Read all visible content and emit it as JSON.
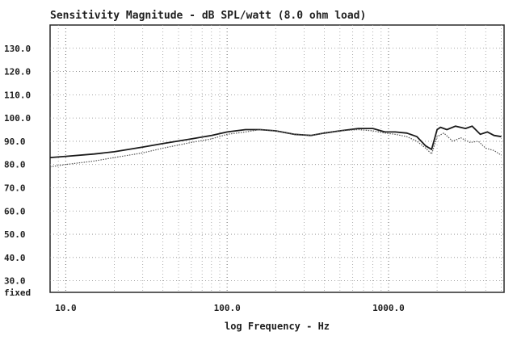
{
  "chart_data": {
    "type": "line",
    "title": "Sensitivity Magnitude - dB SPL/watt (8.0 ohm load)",
    "xlabel": "log Frequency - Hz",
    "ylabel": "",
    "x_scale": "log",
    "xlim": [
      8,
      5200
    ],
    "ylim": [
      25,
      140
    ],
    "x_ticks": [
      {
        "value": 10,
        "label": "10.0"
      },
      {
        "value": 100,
        "label": "100.0"
      },
      {
        "value": 1000,
        "label": "1000.0"
      }
    ],
    "y_ticks": [
      {
        "value": 130,
        "label": "130.0"
      },
      {
        "value": 120,
        "label": "120.0"
      },
      {
        "value": 110,
        "label": "110.0"
      },
      {
        "value": 100,
        "label": "100.0"
      },
      {
        "value": 90,
        "label": "90.0"
      },
      {
        "value": 80,
        "label": "80.0"
      },
      {
        "value": 70,
        "label": "70.0"
      },
      {
        "value": 60,
        "label": "60.0"
      },
      {
        "value": 50,
        "label": "50.0"
      },
      {
        "value": 40,
        "label": "40.0"
      },
      {
        "value": 30,
        "label": "30.0"
      },
      {
        "value": 25,
        "label": "fixed"
      }
    ],
    "grid": true,
    "series": [
      {
        "style": "solid",
        "color": "#1a1a1a",
        "x": [
          8,
          10,
          15,
          20,
          30,
          40,
          60,
          80,
          100,
          130,
          160,
          200,
          260,
          330,
          400,
          500,
          650,
          800,
          950,
          1100,
          1300,
          1500,
          1700,
          1850,
          2000,
          2100,
          2300,
          2600,
          3000,
          3300,
          3700,
          4100,
          4500,
          5000
        ],
        "y": [
          83,
          83.5,
          84.5,
          85.5,
          87.5,
          89,
          91,
          92.5,
          94,
          95,
          95,
          94.5,
          93,
          92.5,
          93.5,
          94.5,
          95.5,
          95.5,
          94,
          94,
          93.5,
          92,
          88,
          86.5,
          95,
          96,
          95,
          96.5,
          95.5,
          96.5,
          93,
          94,
          92.5,
          92
        ]
      },
      {
        "style": "dotted",
        "color": "#555555",
        "x": [
          8,
          10,
          15,
          20,
          30,
          40,
          60,
          80,
          100,
          130,
          160,
          200,
          260,
          330,
          400,
          500,
          650,
          800,
          950,
          1100,
          1300,
          1500,
          1700,
          1850,
          2000,
          2200,
          2500,
          2800,
          3200,
          3600,
          4000,
          4500,
          5000
        ],
        "y": [
          79,
          80,
          81.5,
          83,
          85,
          87,
          89.5,
          91,
          93,
          94,
          95,
          94.5,
          93,
          92.5,
          93.5,
          94.5,
          95,
          94.5,
          93.5,
          93,
          92,
          90,
          87,
          84.5,
          92,
          93.5,
          90,
          91.5,
          89.5,
          90,
          87,
          86,
          84
        ]
      }
    ]
  }
}
